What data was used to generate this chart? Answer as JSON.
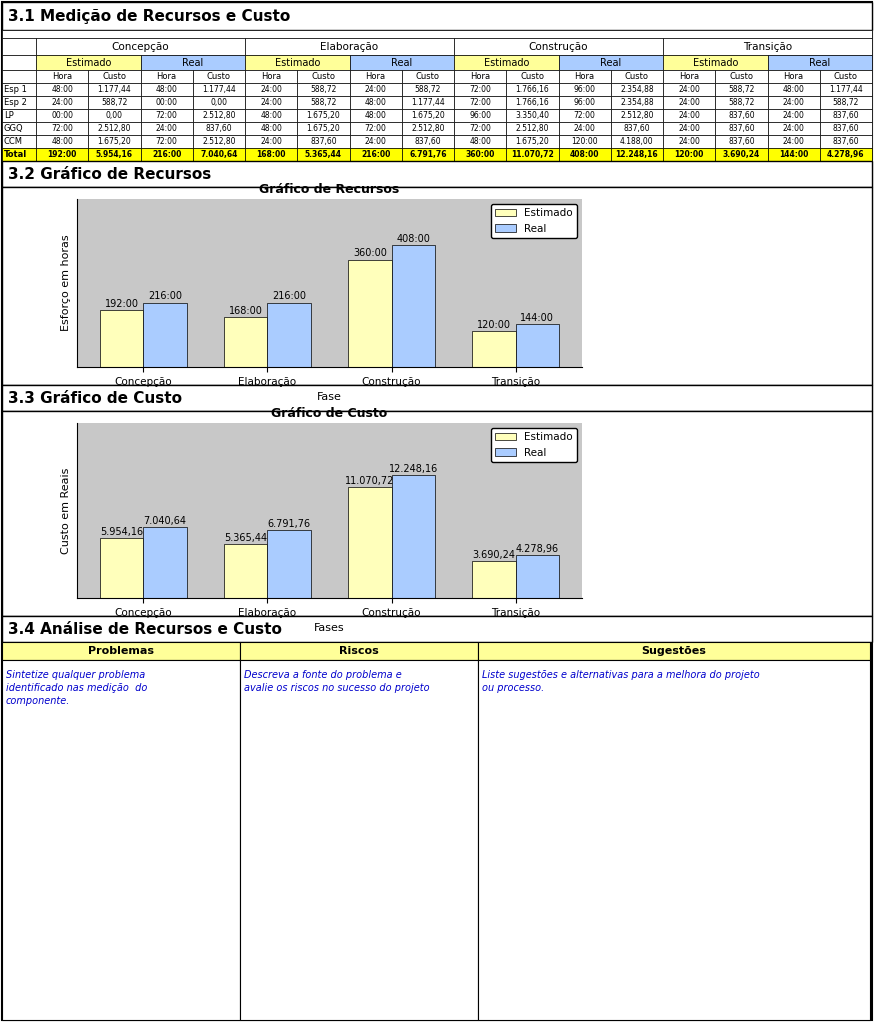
{
  "title_31": "3.1 Medição de Recursos e Custo",
  "title_32": "3.2 Gráfico de Recursos",
  "title_33": "3.3 Gráfico de Custo",
  "title_34": "3.4 Análise de Recursos e Custo",
  "phases": [
    "Concepção",
    "Elaboração",
    "Construção",
    "Transição"
  ],
  "row_labels": [
    "Esp 1",
    "Esp 2",
    "LP",
    "GGQ",
    "CCM",
    "Total"
  ],
  "table_data": [
    [
      "48:00",
      "1.177,44",
      "48:00",
      "1.177,44",
      "24:00",
      "588,72",
      "24:00",
      "588,72",
      "72:00",
      "1.766,16",
      "96:00",
      "2.354,88",
      "24:00",
      "588,72",
      "48:00",
      "1.177,44"
    ],
    [
      "24:00",
      "588,72",
      "00:00",
      "0,00",
      "24:00",
      "588,72",
      "48:00",
      "1.177,44",
      "72:00",
      "1.766,16",
      "96:00",
      "2.354,88",
      "24:00",
      "588,72",
      "24:00",
      "588,72"
    ],
    [
      "00:00",
      "0,00",
      "72:00",
      "2.512,80",
      "48:00",
      "1.675,20",
      "48:00",
      "1.675,20",
      "96:00",
      "3.350,40",
      "72:00",
      "2.512,80",
      "24:00",
      "837,60",
      "24:00",
      "837,60"
    ],
    [
      "72:00",
      "2.512,80",
      "24:00",
      "837,60",
      "48:00",
      "1.675,20",
      "72:00",
      "2.512,80",
      "72:00",
      "2.512,80",
      "24:00",
      "837,60",
      "24:00",
      "837,60",
      "24:00",
      "837,60"
    ],
    [
      "48:00",
      "1.675,20",
      "72:00",
      "2.512,80",
      "24:00",
      "837,60",
      "24:00",
      "837,60",
      "48:00",
      "1.675,20",
      "120:00",
      "4.188,00",
      "24:00",
      "837,60",
      "24:00",
      "837,60"
    ],
    [
      "192:00",
      "5.954,16",
      "216:00",
      "7.040,64",
      "168:00",
      "5.365,44",
      "216:00",
      "6.791,76",
      "360:00",
      "11.070,72",
      "408:00",
      "12.248,16",
      "120:00",
      "3.690,24",
      "144:00",
      "4.278,96"
    ]
  ],
  "resources_estimated": [
    192,
    168,
    360,
    120
  ],
  "resources_real": [
    216,
    216,
    408,
    144
  ],
  "resources_labels_est": [
    "192:00",
    "168:00",
    "360:00",
    "120:00"
  ],
  "resources_labels_real": [
    "216:00",
    "216:00",
    "408:00",
    "144:00"
  ],
  "cost_estimated": [
    5954.16,
    5365.44,
    11070.72,
    3690.24
  ],
  "cost_real": [
    7040.64,
    6791.76,
    12248.16,
    4278.96
  ],
  "cost_labels_est": [
    "5.954,16",
    "5.365,44",
    "11.070,72",
    "3.690,24"
  ],
  "cost_labels_real": [
    "7.040,64",
    "6.791,76",
    "12.248,16",
    "4.278,96"
  ],
  "bar_color_est": "#FFFFBB",
  "bar_color_real": "#AACCFF",
  "chart_bg": "#C8C8C8",
  "header_color_est": "#FFFF99",
  "header_color_real": "#AACCFF",
  "total_row_color": "#FFFF00",
  "problems_header_bg": "#FFFF99",
  "problems_col1": "Problemas",
  "problems_col2": "Riscos",
  "problems_col3": "Sugestões",
  "problems_text1": "Sintetize qualquer problema\nidentificado nas medição  do\ncomponente.",
  "problems_text2": "Descreva a fonte do problema e\navalie os riscos no sucesso do projeto",
  "problems_text3": "Liste sugestões e alternativas para a melhora do projeto\nou processo.",
  "blue_text": "#0000CC",
  "fig_w": 874,
  "fig_h": 1022
}
